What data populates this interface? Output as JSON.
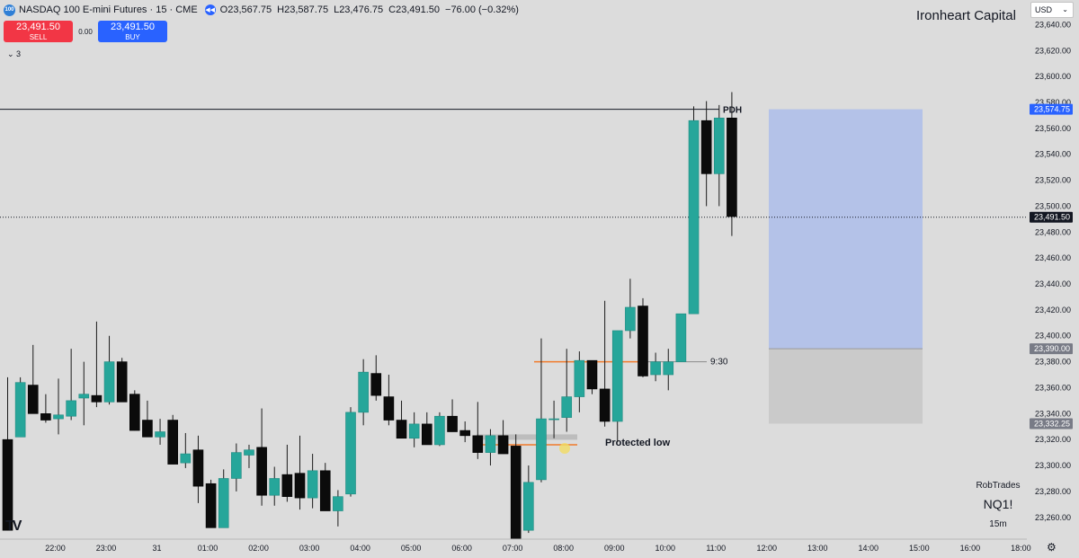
{
  "header": {
    "symbol": "NASDAQ 100 E-mini Futures · 15 · CME",
    "badge": "100",
    "open_key": "O",
    "open": "23,567.75",
    "high_key": "H",
    "high": "23,587.75",
    "low_key": "L",
    "low": "23,476.75",
    "close_key": "C",
    "close": "23,491.50",
    "change": "−76.00 (−0.32%)"
  },
  "trade": {
    "sell_price": "23,491.50",
    "sell_label": "SELL",
    "buy_price": "23,491.50",
    "buy_label": "BUY",
    "spread": "0.00"
  },
  "legend_toggle": "⌄ 3",
  "brand": "Ironheart Capital",
  "currency": "USD",
  "watermark": {
    "author": "RobTrades",
    "symbol": "NQ1!",
    "interval": "15m"
  },
  "colors": {
    "up": "#26a69a",
    "down": "#0b0b0b",
    "background": "#dcdcdc",
    "target_zone": "#b4c2e8",
    "stop_zone": "#cacaca",
    "level_line": "#f07a2a",
    "price_tag": "#131722",
    "target_tag": "#2962ff",
    "stop_tag": "#787b86"
  },
  "chart_data": {
    "type": "candlestick",
    "ylim": [
      23247,
      23656
    ],
    "y_ticks": [
      23260,
      23280,
      23300,
      23320,
      23340,
      23360,
      23380,
      23400,
      23420,
      23440,
      23460,
      23480,
      23500,
      23520,
      23540,
      23560,
      23580,
      23600,
      23620,
      23640
    ],
    "y_tick_labels": [
      "23,260.00",
      "23,280.00",
      "23,300.00",
      "23,320.00",
      "23,340.00",
      "23,360.00",
      "23,380.00",
      "23,400.00",
      "23,420.00",
      "23,440.00",
      "23,460.00",
      "23,480.00",
      "23,500.00",
      "23,520.00",
      "23,540.00",
      "23,560.00",
      "23,580.00",
      "23,600.00",
      "23,620.00",
      "23,640.00"
    ],
    "x_ticks": [
      "22:00",
      "23:00",
      "31",
      "01:00",
      "02:00",
      "03:00",
      "04:00",
      "05:00",
      "06:00",
      "07:00",
      "08:00",
      "09:00",
      "10:00",
      "11:00",
      "12:00",
      "13:00",
      "14:00",
      "15:00",
      "16:00",
      "18:00"
    ],
    "x_tick_index": [
      3.75,
      7.75,
      11.75,
      15.75,
      19.75,
      23.75,
      27.75,
      31.75,
      35.75,
      39.75,
      43.75,
      47.75,
      51.75,
      55.75,
      59.75,
      63.75,
      67.75,
      71.75,
      75.75,
      79.75
    ],
    "candles": [
      {
        "o": 23320,
        "h": 23368,
        "l": 23250,
        "c": 23250
      },
      {
        "o": 23322,
        "h": 23368,
        "l": 23322,
        "c": 23364
      },
      {
        "o": 23362,
        "h": 23393,
        "l": 23340,
        "c": 23340
      },
      {
        "o": 23340,
        "h": 23355,
        "l": 23333,
        "c": 23335
      },
      {
        "o": 23336,
        "h": 23367,
        "l": 23324,
        "c": 23339
      },
      {
        "o": 23338,
        "h": 23390,
        "l": 23335,
        "c": 23350
      },
      {
        "o": 23352,
        "h": 23380,
        "l": 23331,
        "c": 23355
      },
      {
        "o": 23354,
        "h": 23411,
        "l": 23345,
        "c": 23349
      },
      {
        "o": 23349,
        "h": 23400,
        "l": 23347,
        "c": 23380
      },
      {
        "o": 23380,
        "h": 23383,
        "l": 23350,
        "c": 23349
      },
      {
        "o": 23355,
        "h": 23358,
        "l": 23327,
        "c": 23327
      },
      {
        "o": 23335,
        "h": 23350,
        "l": 23322,
        "c": 23322
      },
      {
        "o": 23322,
        "h": 23336,
        "l": 23316,
        "c": 23326
      },
      {
        "o": 23335,
        "h": 23339,
        "l": 23301,
        "c": 23301
      },
      {
        "o": 23302,
        "h": 23325,
        "l": 23298,
        "c": 23309
      },
      {
        "o": 23312,
        "h": 23323,
        "l": 23271,
        "c": 23284
      },
      {
        "o": 23286,
        "h": 23289,
        "l": 23252,
        "c": 23252
      },
      {
        "o": 23252,
        "h": 23297,
        "l": 23252,
        "c": 23290
      },
      {
        "o": 23290,
        "h": 23317,
        "l": 23280,
        "c": 23310
      },
      {
        "o": 23308,
        "h": 23316,
        "l": 23298,
        "c": 23312
      },
      {
        "o": 23314,
        "h": 23344,
        "l": 23269,
        "c": 23277
      },
      {
        "o": 23277,
        "h": 23299,
        "l": 23269,
        "c": 23290
      },
      {
        "o": 23293,
        "h": 23316,
        "l": 23272,
        "c": 23276
      },
      {
        "o": 23294,
        "h": 23323,
        "l": 23266,
        "c": 23275
      },
      {
        "o": 23275,
        "h": 23309,
        "l": 23267,
        "c": 23296
      },
      {
        "o": 23296,
        "h": 23302,
        "l": 23265,
        "c": 23265
      },
      {
        "o": 23265,
        "h": 23281,
        "l": 23253,
        "c": 23276
      },
      {
        "o": 23278,
        "h": 23345,
        "l": 23276,
        "c": 23341
      },
      {
        "o": 23341,
        "h": 23382,
        "l": 23331,
        "c": 23372
      },
      {
        "o": 23371,
        "h": 23385,
        "l": 23350,
        "c": 23354
      },
      {
        "o": 23353,
        "h": 23370,
        "l": 23331,
        "c": 23335
      },
      {
        "o": 23335,
        "h": 23350,
        "l": 23321,
        "c": 23321
      },
      {
        "o": 23321,
        "h": 23341,
        "l": 23314,
        "c": 23332
      },
      {
        "o": 23332,
        "h": 23341,
        "l": 23316,
        "c": 23316
      },
      {
        "o": 23316,
        "h": 23341,
        "l": 23315,
        "c": 23338
      },
      {
        "o": 23338,
        "h": 23351,
        "l": 23326,
        "c": 23326
      },
      {
        "o": 23327,
        "h": 23334,
        "l": 23318,
        "c": 23323
      },
      {
        "o": 23323,
        "h": 23349,
        "l": 23305,
        "c": 23310
      },
      {
        "o": 23310,
        "h": 23328,
        "l": 23300,
        "c": 23323
      },
      {
        "o": 23323,
        "h": 23335,
        "l": 23309,
        "c": 23309
      },
      {
        "o": 23315,
        "h": 23324,
        "l": 23238,
        "c": 23238
      },
      {
        "o": 23250,
        "h": 23300,
        "l": 23248,
        "c": 23287
      },
      {
        "o": 23289,
        "h": 23398,
        "l": 23287,
        "c": 23336
      },
      {
        "o": 23336,
        "h": 23350,
        "l": 23321,
        "c": 23336
      },
      {
        "o": 23337,
        "h": 23390,
        "l": 23326,
        "c": 23353
      },
      {
        "o": 23353,
        "h": 23388,
        "l": 23341,
        "c": 23381
      },
      {
        "o": 23381,
        "h": 23381,
        "l": 23355,
        "c": 23359
      },
      {
        "o": 23359,
        "h": 23427,
        "l": 23330,
        "c": 23334
      },
      {
        "o": 23334,
        "h": 23404,
        "l": 23318,
        "c": 23404
      },
      {
        "o": 23404,
        "h": 23444,
        "l": 23398,
        "c": 23422
      },
      {
        "o": 23423,
        "h": 23429,
        "l": 23368,
        "c": 23369
      },
      {
        "o": 23370,
        "h": 23387,
        "l": 23365,
        "c": 23380
      },
      {
        "o": 23370,
        "h": 23390,
        "l": 23358,
        "c": 23380
      },
      {
        "o": 23380,
        "h": 23417,
        "l": 23380,
        "c": 23417
      },
      {
        "o": 23417,
        "h": 23577,
        "l": 23417,
        "c": 23566
      },
      {
        "o": 23566,
        "h": 23581,
        "l": 23500,
        "c": 23525
      },
      {
        "o": 23525,
        "h": 23578,
        "l": 23500,
        "c": 23568
      },
      {
        "o": 23568,
        "h": 23588,
        "l": 23477,
        "c": 23492
      }
    ],
    "candle_x": [
      3,
      15,
      27,
      39,
      48,
      62,
      76,
      90,
      104,
      118,
      132,
      146,
      160,
      175,
      189,
      203,
      217,
      231,
      245,
      260,
      274,
      288,
      302,
      316,
      330,
      344,
      358,
      373,
      387,
      401,
      416,
      430,
      444,
      458,
      472,
      486,
      500,
      514,
      528,
      543,
      557,
      571,
      585,
      599,
      613,
      627,
      643,
      657,
      671,
      685,
      699,
      713,
      727,
      741,
      755,
      771,
      787,
      801
    ],
    "candle_x_note": "",
    "levels": [
      {
        "label": "PDH",
        "price": 23574.75
      },
      {
        "label": "9:30",
        "price": 23380
      }
    ],
    "current_price": 23491.5,
    "price_tags": [
      {
        "label": "23,574.75",
        "price": 23574.75,
        "kind": "target"
      },
      {
        "label": "23,491.50",
        "price": 23491.5,
        "kind": "last"
      },
      {
        "label": "23,390.00",
        "price": 23390.0,
        "kind": "stop"
      },
      {
        "label": "23,332.25",
        "price": 23332.25,
        "kind": "stop"
      }
    ],
    "position": {
      "target_price": 23574.75,
      "entry_price": 23390.0,
      "stop_price": 23332.25
    },
    "protected_low": {
      "label": "Protected low",
      "price": 23316
    },
    "fvg_zone": {
      "top": 23324,
      "bottom": 23320
    }
  }
}
